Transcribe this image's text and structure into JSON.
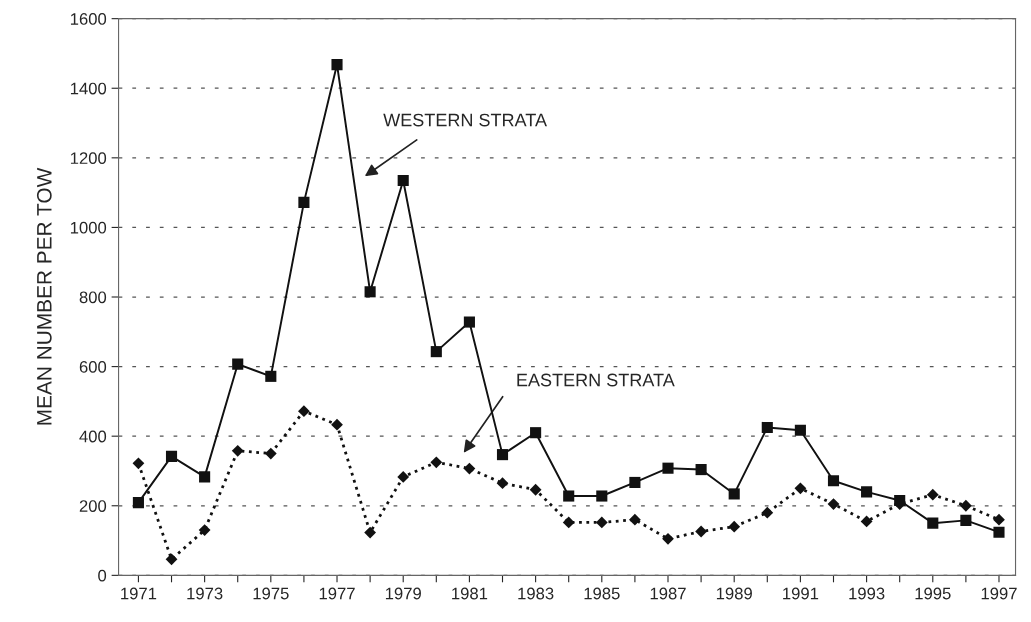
{
  "chart_data": {
    "type": "line",
    "ylabel": "MEAN NUMBER PER TOW",
    "x": [
      1971,
      1972,
      1973,
      1974,
      1975,
      1976,
      1977,
      1978,
      1979,
      1980,
      1981,
      1982,
      1983,
      1984,
      1985,
      1986,
      1987,
      1988,
      1989,
      1990,
      1991,
      1992,
      1993,
      1994,
      1995,
      1996,
      1997
    ],
    "series": [
      {
        "color": "#111111",
        "marker": "square",
        "line_style": "solid",
        "values": [
          209,
          342,
          283,
          607,
          572,
          1072,
          1468,
          815,
          1135,
          643,
          728,
          347,
          410,
          228,
          228,
          267,
          308,
          304,
          234,
          425,
          417,
          272,
          240,
          215,
          150,
          158,
          124
        ]
      },
      {
        "color": "#111111",
        "marker": "diamond",
        "line_style": "dotted",
        "values": [
          322,
          46,
          130,
          358,
          350,
          472,
          433,
          123,
          283,
          325,
          307,
          265,
          246,
          152,
          152,
          160,
          105,
          126,
          140,
          180,
          250,
          205,
          155,
          205,
          232,
          200,
          160
        ]
      }
    ],
    "annotations": [
      "WESTERN STRATA",
      "EASTERN STRATA"
    ],
    "xlim": [
      1970.4,
      1997.5
    ],
    "xticks": [
      1971,
      {
        "value": 1972,
        "label": null
      },
      1973,
      {
        "value": 1974,
        "label": null
      },
      1975,
      {
        "value": 1976,
        "label": null
      },
      1977,
      {
        "value": 1978,
        "label": null
      },
      1979,
      {
        "value": 1980,
        "label": null
      },
      1981,
      {
        "value": 1982,
        "label": null
      },
      1983,
      {
        "value": 1984,
        "label": null
      },
      1985,
      {
        "value": 1986,
        "label": null
      },
      1987,
      {
        "value": 1988,
        "label": null
      },
      1989,
      {
        "value": 1990,
        "label": null
      },
      1991,
      {
        "value": 1992,
        "label": null
      },
      1993,
      {
        "value": 1994,
        "label": null
      },
      1995,
      {
        "value": 1996,
        "label": null
      },
      1997
    ],
    "ylim": [
      0,
      1600
    ],
    "yticks": [
      0,
      200,
      400,
      600,
      800,
      1000,
      1200,
      1400,
      1600
    ],
    "grid": "y",
    "legend": false
  }
}
